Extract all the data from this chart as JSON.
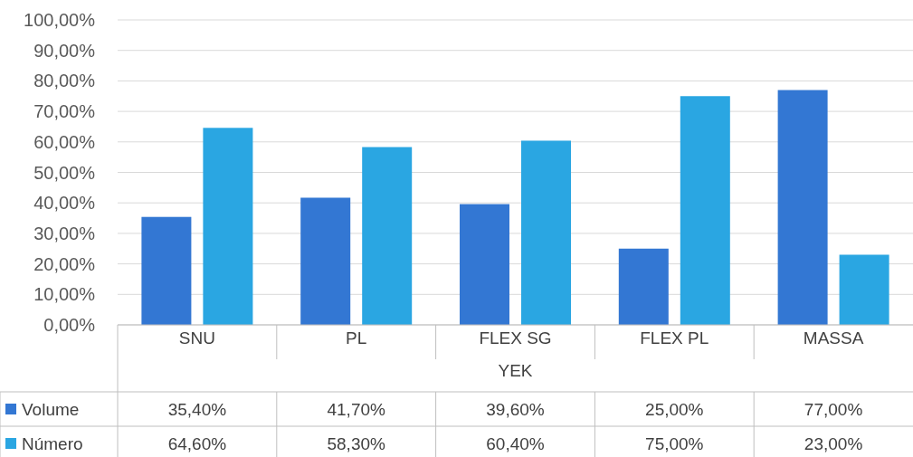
{
  "chart_data": {
    "type": "bar",
    "xlabel": "YEK",
    "categories": [
      "SNU",
      "PL",
      "FLEX SG",
      "FLEX PL",
      "MASSA"
    ],
    "series": [
      {
        "name": "Volume",
        "color": "#3377d3",
        "values": [
          35.4,
          41.7,
          39.6,
          25.0,
          77.0
        ],
        "value_labels": [
          "35,40%",
          "41,70%",
          "39,60%",
          "25,00%",
          "77,00%"
        ]
      },
      {
        "name": "Número",
        "color": "#2aa6e2",
        "values": [
          64.6,
          58.3,
          60.4,
          75.0,
          23.0
        ],
        "value_labels": [
          "64,60%",
          "58,30%",
          "60,40%",
          "75,00%",
          "23,00%"
        ]
      }
    ],
    "ylim": [
      0,
      100
    ],
    "yticks": [
      {
        "value": 0,
        "label": "0,00%"
      },
      {
        "value": 10,
        "label": "10,00%"
      },
      {
        "value": 20,
        "label": "20,00%"
      },
      {
        "value": 30,
        "label": "30,00%"
      },
      {
        "value": 40,
        "label": "40,00%"
      },
      {
        "value": 50,
        "label": "50,00%"
      },
      {
        "value": 60,
        "label": "60,00%"
      },
      {
        "value": 70,
        "label": "70,00%"
      },
      {
        "value": 80,
        "label": "80,00%"
      },
      {
        "value": 90,
        "label": "90,00%"
      },
      {
        "value": 100,
        "label": "100,00%"
      }
    ],
    "grid": "y",
    "legend": "bottom"
  }
}
